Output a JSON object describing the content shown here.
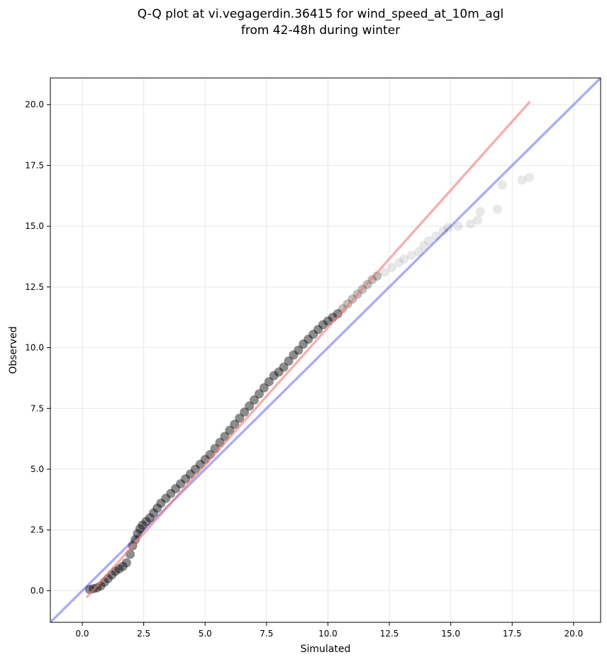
{
  "chart_data": {
    "type": "scatter",
    "title_lines": [
      "Q-Q plot at vi.vegagerdin.36415 for wind_speed_at_10m_agl",
      "from 42-48h during winter"
    ],
    "xlabel": "Simulated",
    "ylabel": "Observed",
    "xlim": [
      -1.3,
      21.1
    ],
    "ylim": [
      -1.3,
      21.1
    ],
    "xticks": [
      0.0,
      2.5,
      5.0,
      7.5,
      10.0,
      12.5,
      15.0,
      17.5,
      20.0
    ],
    "yticks": [
      0.0,
      2.5,
      5.0,
      7.5,
      10.0,
      12.5,
      15.0,
      17.5,
      20.0
    ],
    "xtick_labels": [
      "0.0",
      "2.5",
      "5.0",
      "7.5",
      "10.0",
      "12.5",
      "15.0",
      "17.5",
      "20.0"
    ],
    "ytick_labels": [
      "0.0",
      "2.5",
      "5.0",
      "7.5",
      "10.0",
      "12.5",
      "15.0",
      "17.5",
      "20.0"
    ],
    "grid": true,
    "identity_line": {
      "x": [
        -1.3,
        21.1
      ],
      "y": [
        -1.3,
        21.1
      ],
      "color": "#5b5bef"
    },
    "fit_line": {
      "x": [
        0.2,
        18.2
      ],
      "y": [
        -0.25,
        20.1
      ],
      "color": "#f07b7b"
    },
    "point_color": "#000000",
    "points": {
      "x": [
        0.3,
        0.45,
        0.6,
        0.75,
        0.9,
        1.05,
        1.2,
        1.35,
        1.5,
        1.65,
        1.8,
        1.95,
        2.05,
        2.15,
        2.25,
        2.35,
        2.45,
        2.6,
        2.75,
        2.9,
        3.05,
        3.2,
        3.4,
        3.6,
        3.8,
        4.0,
        4.2,
        4.4,
        4.6,
        4.8,
        5.0,
        5.2,
        5.4,
        5.6,
        5.8,
        6.0,
        6.2,
        6.4,
        6.6,
        6.8,
        7.0,
        7.2,
        7.4,
        7.6,
        7.8,
        8.0,
        8.2,
        8.4,
        8.6,
        8.8,
        9.0,
        9.2,
        9.4,
        9.6,
        9.8,
        10.0,
        10.2,
        10.4,
        10.6,
        10.8,
        11.0,
        11.2,
        11.4,
        11.6,
        11.8,
        12.0,
        12.3,
        12.6,
        12.9,
        13.1,
        13.4,
        13.7,
        13.9,
        14.1,
        14.4,
        14.7,
        14.9,
        15.3,
        15.8,
        16.1,
        16.2,
        16.9,
        17.1,
        17.9,
        18.2
      ],
      "y": [
        0.05,
        0.08,
        0.12,
        0.2,
        0.35,
        0.5,
        0.65,
        0.8,
        0.9,
        1.0,
        1.15,
        1.5,
        1.85,
        2.1,
        2.35,
        2.55,
        2.7,
        2.85,
        3.0,
        3.2,
        3.4,
        3.6,
        3.8,
        4.0,
        4.2,
        4.4,
        4.6,
        4.8,
        5.0,
        5.2,
        5.4,
        5.6,
        5.85,
        6.1,
        6.35,
        6.6,
        6.85,
        7.1,
        7.35,
        7.6,
        7.85,
        8.1,
        8.35,
        8.6,
        8.85,
        9.0,
        9.2,
        9.45,
        9.7,
        9.9,
        10.15,
        10.35,
        10.55,
        10.75,
        10.95,
        11.1,
        11.25,
        11.4,
        11.6,
        11.8,
        12.0,
        12.2,
        12.4,
        12.6,
        12.8,
        12.95,
        13.1,
        13.3,
        13.5,
        13.65,
        13.8,
        13.95,
        14.2,
        14.4,
        14.6,
        14.8,
        14.95,
        15.0,
        15.1,
        15.25,
        15.6,
        15.7,
        16.7,
        16.9,
        17.0
      ]
    }
  }
}
